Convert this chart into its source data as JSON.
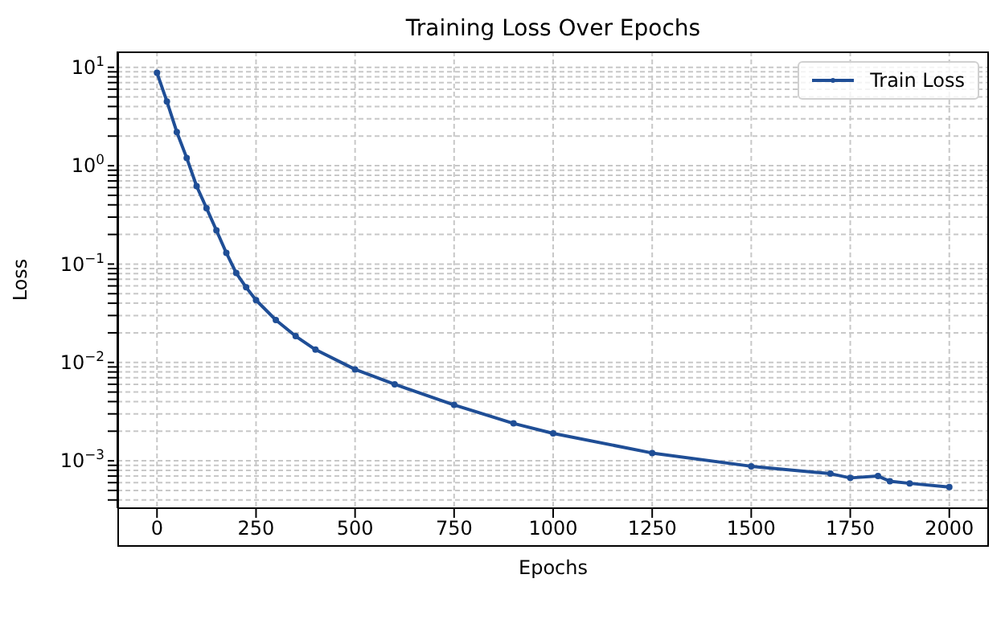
{
  "chart_data": {
    "type": "line",
    "title": "Training Loss Over Epochs",
    "xlabel": "Epochs",
    "ylabel": "Loss",
    "x": [
      0,
      25,
      50,
      75,
      100,
      125,
      150,
      175,
      200,
      225,
      250,
      300,
      350,
      400,
      500,
      600,
      750,
      900,
      1000,
      1250,
      1500,
      1700,
      1750,
      1820,
      1850,
      1900,
      2000
    ],
    "series": [
      {
        "name": "Train Loss",
        "color": "#1f4e96",
        "values": [
          8.8,
          4.5,
          2.2,
          1.2,
          0.62,
          0.37,
          0.22,
          0.13,
          0.081,
          0.058,
          0.043,
          0.027,
          0.0185,
          0.0135,
          0.0085,
          0.006,
          0.0037,
          0.0024,
          0.0019,
          0.0012,
          0.00088,
          0.00074,
          0.00067,
          0.0007,
          0.00062,
          0.00059,
          0.00054
        ]
      }
    ],
    "xlim": [
      -100,
      2100
    ],
    "xticks": [
      0,
      250,
      500,
      750,
      1000,
      1250,
      1500,
      1750,
      2000
    ],
    "ylim": [
      0.00033,
      14.5
    ],
    "yticks": [
      {
        "value": 0.0004,
        "label": null
      },
      {
        "value": 0.0005,
        "label": null
      },
      {
        "value": 0.0006,
        "label": null
      },
      {
        "value": 0.0007,
        "label": null
      },
      {
        "value": 0.0008,
        "label": null
      },
      {
        "value": 0.0009,
        "label": null
      },
      {
        "value": 0.001,
        "label": "10$^{−3}$"
      },
      {
        "value": 0.002,
        "label": null
      },
      {
        "value": 0.003,
        "label": null
      },
      {
        "value": 0.004,
        "label": null
      },
      {
        "value": 0.005,
        "label": null
      },
      {
        "value": 0.006,
        "label": null
      },
      {
        "value": 0.007,
        "label": null
      },
      {
        "value": 0.008,
        "label": null
      },
      {
        "value": 0.009,
        "label": null
      },
      {
        "value": 0.01,
        "label": "10$^{−2}$"
      },
      {
        "value": 0.02,
        "label": null
      },
      {
        "value": 0.03,
        "label": null
      },
      {
        "value": 0.04,
        "label": null
      },
      {
        "value": 0.05,
        "label": null
      },
      {
        "value": 0.06,
        "label": null
      },
      {
        "value": 0.07,
        "label": null
      },
      {
        "value": 0.08,
        "label": null
      },
      {
        "value": 0.09,
        "label": null
      },
      {
        "value": 0.1,
        "label": "10$^{−1}$"
      },
      {
        "value": 0.2,
        "label": null
      },
      {
        "value": 0.3,
        "label": null
      },
      {
        "value": 0.4,
        "label": null
      },
      {
        "value": 0.5,
        "label": null
      },
      {
        "value": 0.6,
        "label": null
      },
      {
        "value": 0.7,
        "label": null
      },
      {
        "value": 0.8,
        "label": null
      },
      {
        "value": 0.9,
        "label": null
      },
      {
        "value": 1,
        "label": "10$^{0}$"
      },
      {
        "value": 2,
        "label": null
      },
      {
        "value": 3,
        "label": null
      },
      {
        "value": 4,
        "label": null
      },
      {
        "value": 5,
        "label": null
      },
      {
        "value": 6,
        "label": null
      },
      {
        "value": 7,
        "label": null
      },
      {
        "value": 8,
        "label": null
      },
      {
        "value": 9,
        "label": null
      },
      {
        "value": 10,
        "label": "10$^{1}$"
      }
    ],
    "log": "y",
    "grid": true,
    "legend": "top right",
    "marker": "circle",
    "line_style": "solid"
  }
}
